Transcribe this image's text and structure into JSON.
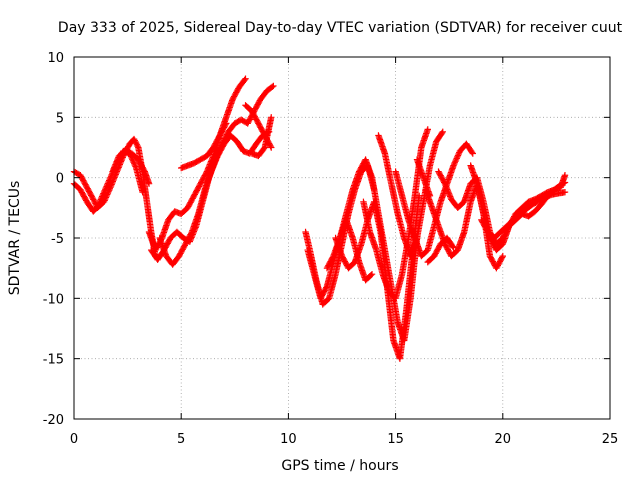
{
  "chart_data": {
    "type": "scatter",
    "title": "Day 333 of 2025, Sidereal Day-to-day VTEC variation (SDTVAR) for receiver cuut",
    "xlabel": "GPS time / hours",
    "ylabel": "SDTVAR / TECUs",
    "xlim": [
      0,
      25
    ],
    "ylim": [
      -20,
      10
    ],
    "x_ticks": [
      0,
      5,
      10,
      15,
      20,
      25
    ],
    "x_tick_labels": [
      "0",
      "5",
      "10",
      "15",
      "20",
      "25"
    ],
    "y_ticks": [
      -20,
      -15,
      -10,
      -5,
      0,
      5,
      10
    ],
    "y_tick_labels": [
      "-20",
      "-15",
      "-10",
      "-5",
      "0",
      "5",
      "10"
    ],
    "grid": true,
    "legend": "none",
    "marker": "plus",
    "color": "#ff0000",
    "series": [
      {
        "x": [
          0.0,
          0.3,
          0.6,
          0.9,
          1.1,
          1.4,
          1.7,
          2.0,
          2.3,
          2.6,
          2.8,
          3.0,
          3.2,
          3.4,
          3.6,
          3.8
        ],
        "y": [
          0.5,
          0.2,
          -0.8,
          -1.8,
          -2.5,
          -2.0,
          -0.8,
          0.5,
          1.8,
          2.8,
          3.2,
          2.5,
          0.5,
          -2.0,
          -4.5,
          -6.5
        ]
      },
      {
        "x": [
          0.0,
          0.3,
          0.6,
          0.9,
          1.1,
          1.4,
          1.7,
          2.0,
          2.3,
          2.6,
          2.9,
          3.2
        ],
        "y": [
          -0.5,
          -1.0,
          -2.0,
          -2.8,
          -2.4,
          -1.2,
          0.0,
          1.2,
          2.2,
          2.0,
          0.8,
          -1.2
        ]
      },
      {
        "x": [
          1.8,
          2.1,
          2.4,
          2.7,
          3.0,
          3.3,
          3.5
        ],
        "y": [
          0.5,
          1.8,
          2.3,
          2.0,
          1.5,
          0.5,
          -0.5
        ]
      },
      {
        "x": [
          3.5,
          3.8,
          4.1,
          4.4,
          4.7,
          5.0,
          5.3,
          5.6,
          5.9,
          6.2,
          6.5,
          6.8,
          7.1,
          7.4,
          7.7,
          8.0
        ],
        "y": [
          -4.5,
          -6.0,
          -5.0,
          -3.5,
          -2.8,
          -3.0,
          -2.5,
          -1.5,
          -0.5,
          0.5,
          1.8,
          3.5,
          5.0,
          6.5,
          7.5,
          8.2
        ]
      },
      {
        "x": [
          3.6,
          3.9,
          4.2,
          4.5,
          4.8,
          5.1,
          5.4,
          5.7,
          6.0,
          6.3,
          6.6,
          6.9,
          7.2,
          7.5,
          7.8,
          8.1,
          8.4,
          8.7,
          9.0,
          9.3
        ],
        "y": [
          -6.0,
          -6.8,
          -6.0,
          -5.0,
          -4.5,
          -5.0,
          -5.3,
          -4.0,
          -2.0,
          0.0,
          1.5,
          2.8,
          3.8,
          4.5,
          4.8,
          4.5,
          5.5,
          6.5,
          7.2,
          7.6
        ]
      },
      {
        "x": [
          4.0,
          4.3,
          4.6,
          4.9,
          5.2,
          5.5,
          5.8,
          6.1,
          6.4,
          6.7,
          7.0,
          7.3,
          7.6,
          7.9,
          8.2,
          8.5,
          8.8,
          9.1
        ],
        "y": [
          -5.0,
          -6.5,
          -7.2,
          -6.5,
          -5.5,
          -4.5,
          -3.0,
          -1.0,
          0.5,
          1.8,
          2.8,
          3.5,
          3.0,
          2.2,
          2.0,
          2.8,
          3.5,
          3.8
        ]
      },
      {
        "x": [
          5.0,
          5.3,
          5.6,
          5.9,
          6.2,
          6.5,
          6.8,
          7.1
        ],
        "y": [
          0.8,
          1.0,
          1.2,
          1.5,
          1.8,
          2.5,
          3.5,
          4.5
        ]
      },
      {
        "x": [
          8.0,
          8.3,
          8.6,
          8.9,
          9.2
        ],
        "y": [
          6.0,
          5.5,
          4.5,
          3.5,
          2.5
        ]
      },
      {
        "x": [
          8.3,
          8.6,
          8.9,
          9.2
        ],
        "y": [
          2.0,
          1.8,
          2.5,
          5.0
        ]
      },
      {
        "x": [
          10.8,
          11.0,
          11.3,
          11.6,
          11.9,
          12.2,
          12.5,
          12.8,
          13.1,
          13.4,
          13.7,
          14.0
        ],
        "y": [
          -4.5,
          -6.0,
          -8.5,
          -10.5,
          -10.0,
          -8.0,
          -5.5,
          -3.0,
          -1.0,
          0.5,
          1.0,
          -1.0
        ]
      },
      {
        "x": [
          10.9,
          11.2,
          11.5,
          11.8,
          12.1,
          12.4,
          12.7,
          13.0,
          13.3,
          13.6,
          13.9
        ],
        "y": [
          -6.0,
          -8.0,
          -10.0,
          -9.0,
          -7.0,
          -5.0,
          -3.5,
          -5.0,
          -7.0,
          -8.5,
          -8.0
        ]
      },
      {
        "x": [
          11.8,
          12.1,
          12.4,
          12.7,
          13.0,
          13.3,
          13.6,
          13.9,
          14.2,
          14.5,
          14.8,
          15.1,
          15.4,
          15.7,
          16.0
        ],
        "y": [
          -7.5,
          -6.5,
          -5.0,
          -3.0,
          -1.0,
          0.5,
          1.5,
          0.0,
          -3.0,
          -6.0,
          -9.0,
          -12.0,
          -13.5,
          -10.0,
          -5.0
        ]
      },
      {
        "x": [
          12.2,
          12.5,
          12.8,
          13.1,
          13.4,
          13.7,
          14.0,
          14.3,
          14.6,
          14.9,
          15.2,
          15.5,
          15.8,
          16.1
        ],
        "y": [
          -5.0,
          -6.5,
          -7.5,
          -7.0,
          -5.5,
          -3.5,
          -2.0,
          -4.5,
          -9.0,
          -13.5,
          -15.0,
          -11.0,
          -6.0,
          -1.5
        ]
      },
      {
        "x": [
          13.5,
          13.8,
          14.1,
          14.4,
          14.7,
          15.0,
          15.3,
          15.6,
          15.9,
          16.2,
          16.5
        ],
        "y": [
          -2.0,
          -4.5,
          -6.0,
          -8.0,
          -9.5,
          -10.0,
          -8.0,
          -5.0,
          -1.5,
          2.5,
          4.0
        ]
      },
      {
        "x": [
          14.2,
          14.5,
          14.8,
          15.1,
          15.4,
          15.7,
          16.0,
          16.3,
          16.6,
          16.9,
          17.2
        ],
        "y": [
          3.5,
          2.0,
          -0.5,
          -3.0,
          -5.0,
          -6.5,
          -5.0,
          -2.0,
          1.0,
          3.0,
          3.8
        ]
      },
      {
        "x": [
          15.0,
          15.3,
          15.6,
          15.9,
          16.2,
          16.5,
          16.8,
          17.1,
          17.4,
          17.7,
          18.0,
          18.3,
          18.6
        ],
        "y": [
          0.5,
          -1.5,
          -3.5,
          -5.0,
          -6.5,
          -6.0,
          -4.0,
          -2.0,
          -0.5,
          1.0,
          2.2,
          2.8,
          2.0
        ]
      },
      {
        "x": [
          16.4,
          16.7,
          17.0,
          17.3,
          17.6,
          17.9,
          18.2,
          18.5,
          18.8,
          19.1,
          19.4,
          19.7,
          20.0
        ],
        "y": [
          -1.0,
          -2.5,
          -4.0,
          -5.5,
          -6.5,
          -6.0,
          -4.5,
          -2.0,
          -0.5,
          -3.0,
          -6.5,
          -7.5,
          -6.5
        ]
      },
      {
        "x": [
          16.0,
          16.3,
          16.6
        ],
        "y": [
          1.5,
          0.0,
          -1.5
        ]
      },
      {
        "x": [
          16.5,
          16.8,
          17.1,
          17.4,
          17.7
        ],
        "y": [
          -7.0,
          -6.5,
          -5.5,
          -5.0,
          -5.8
        ]
      },
      {
        "x": [
          17.0,
          17.3,
          17.6,
          17.9,
          18.2,
          18.5,
          18.8,
          19.1,
          19.4,
          19.7,
          20.0,
          20.3,
          20.6,
          20.9,
          21.2,
          21.5,
          21.8,
          22.1,
          22.4,
          22.7,
          22.9
        ],
        "y": [
          0.5,
          -0.5,
          -1.8,
          -2.5,
          -2.0,
          -0.5,
          0.0,
          -2.0,
          -4.5,
          -5.5,
          -5.0,
          -4.0,
          -3.5,
          -3.0,
          -3.2,
          -2.8,
          -2.2,
          -1.5,
          -1.0,
          -0.6,
          -0.4
        ]
      },
      {
        "x": [
          18.5,
          18.8,
          19.1,
          19.4,
          19.7,
          20.0,
          20.3,
          20.6,
          20.9,
          21.2,
          21.5,
          21.8,
          22.1,
          22.4,
          22.7,
          22.9
        ],
        "y": [
          1.0,
          -0.5,
          -3.0,
          -5.0,
          -6.0,
          -5.5,
          -4.0,
          -3.0,
          -2.5,
          -2.0,
          -1.8,
          -1.5,
          -1.2,
          -1.0,
          -0.8,
          0.2
        ]
      },
      {
        "x": [
          19.0,
          19.3,
          19.6,
          19.9,
          20.2,
          20.5,
          20.8,
          21.1,
          21.4,
          21.7,
          22.0,
          22.3,
          22.6,
          22.9
        ],
        "y": [
          -3.5,
          -4.5,
          -5.0,
          -4.5,
          -4.0,
          -3.5,
          -3.0,
          -2.6,
          -2.2,
          -1.9,
          -1.6,
          -1.4,
          -1.3,
          -1.2
        ]
      }
    ]
  }
}
